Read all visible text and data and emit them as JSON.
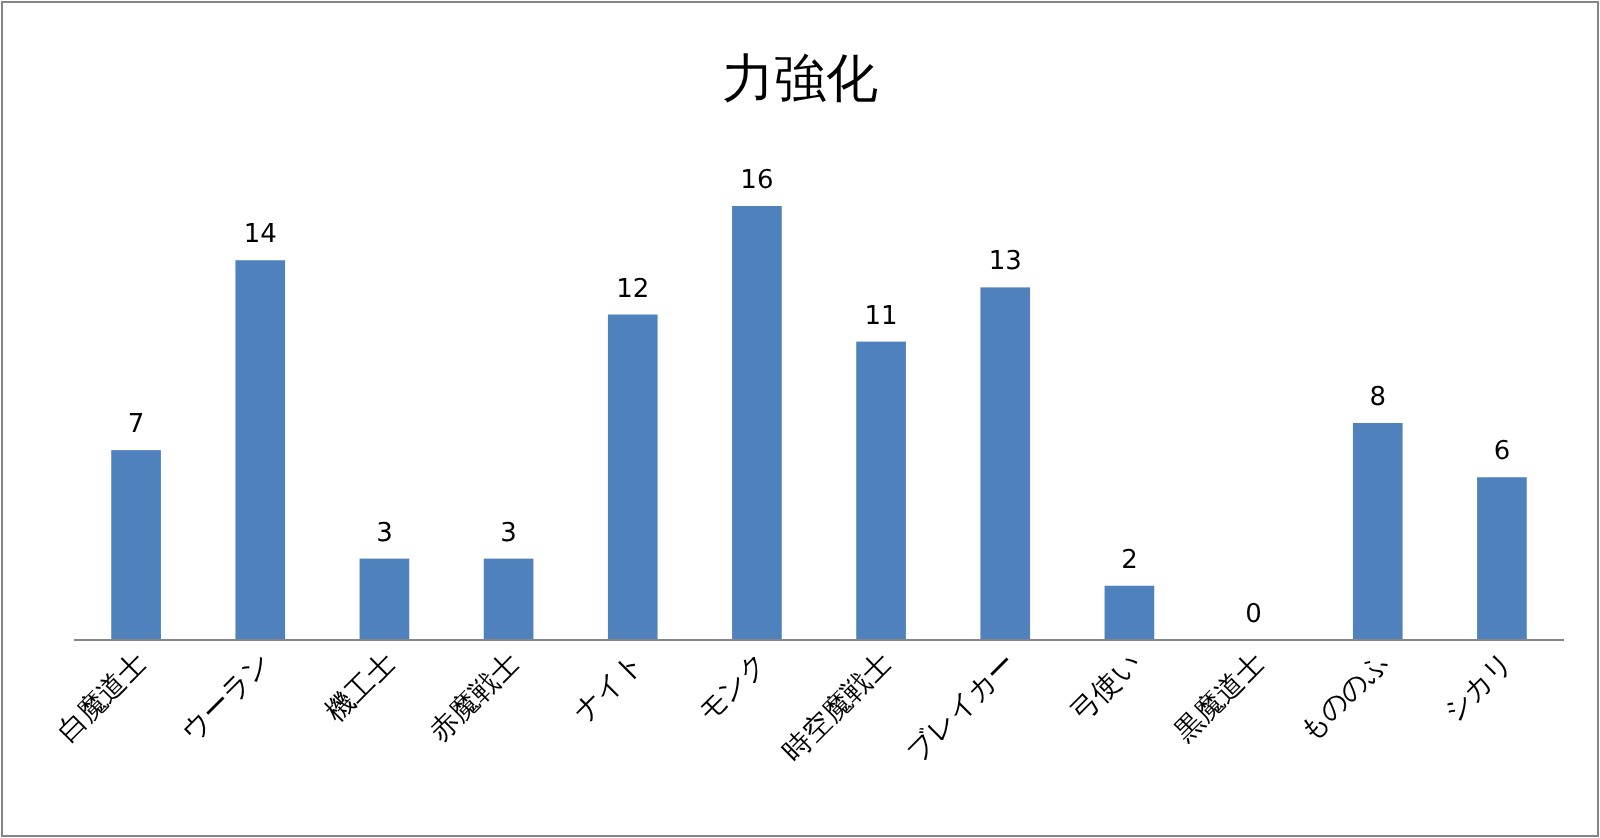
{
  "chart_data": {
    "type": "bar",
    "title": "力強化",
    "categories": [
      "白魔道士",
      "ウーラン",
      "機工士",
      "赤魔戦士",
      "ナイト",
      "モンク",
      "時空魔戦士",
      "ブレイカー",
      "弓使い",
      "黒魔道士",
      "もののふ",
      "シカリ"
    ],
    "values": [
      7,
      14,
      3,
      3,
      12,
      16,
      11,
      13,
      2,
      0,
      8,
      6
    ],
    "color": "#4f81bd",
    "data_labels": true
  }
}
